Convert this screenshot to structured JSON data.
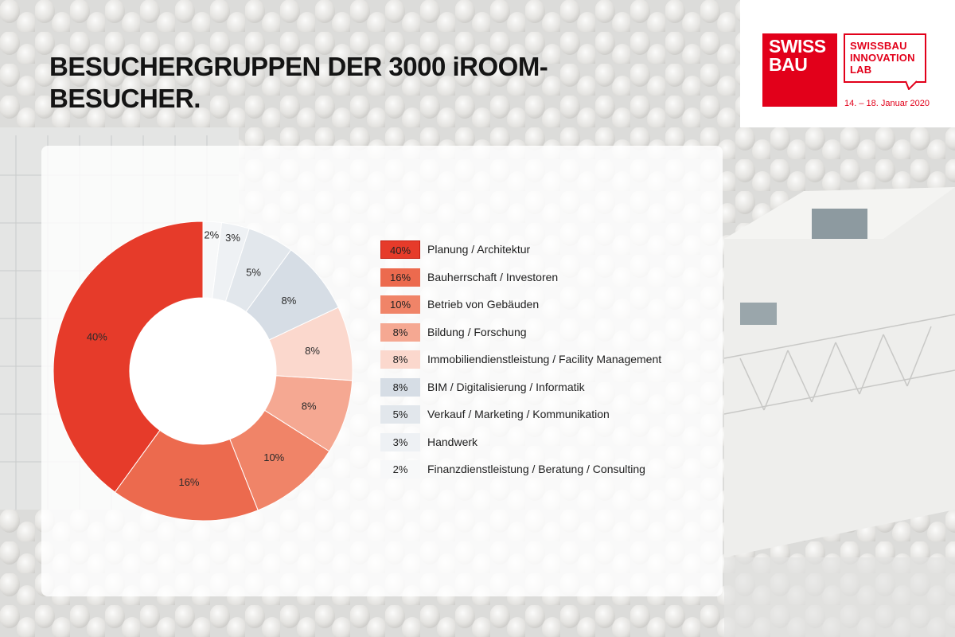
{
  "title": "BESUCHERGRUPPEN DER 3000 iROOM-BESUCHER.",
  "logo": {
    "brand_line1": "SWISS",
    "brand_line2": "BAU",
    "lab_line1": "SWISSBAU",
    "lab_line2": "INNOVATION",
    "lab_line3": "LAB",
    "date": "14. – 18. Januar 2020",
    "brand_color": "#e2001a"
  },
  "chart_data": {
    "type": "donut",
    "title": "BESUCHERGRUPPEN DER 3000 iROOM-BESUCHER.",
    "unit": "%",
    "categories": [
      "Planung / Architektur",
      "Bauherrschaft / Investoren",
      "Betrieb von Gebäuden",
      "Bildung / Forschung",
      "Immobiliendienstleistung / Facility Management",
      "BIM / Digitalisierung / Informatik",
      "Verkauf / Marketing / Kommunikation",
      "Handwerk",
      "Finanzdienstleistung / Beratung / Consulting"
    ],
    "values": [
      40,
      16,
      10,
      8,
      8,
      8,
      5,
      3,
      2
    ],
    "value_labels": [
      "40%",
      "16%",
      "10%",
      "8%",
      "8%",
      "8%",
      "5%",
      "3%",
      "2%"
    ],
    "colors": [
      "#e63b2a",
      "#ec6a4e",
      "#f08468",
      "#f5a892",
      "#fbd8cd",
      "#d6dde5",
      "#e2e7ec",
      "#eef1f4",
      "#f7f8f9"
    ],
    "legend_position": "right",
    "start_angle_deg": 0,
    "direction": "counterclockwise",
    "grid": false
  }
}
